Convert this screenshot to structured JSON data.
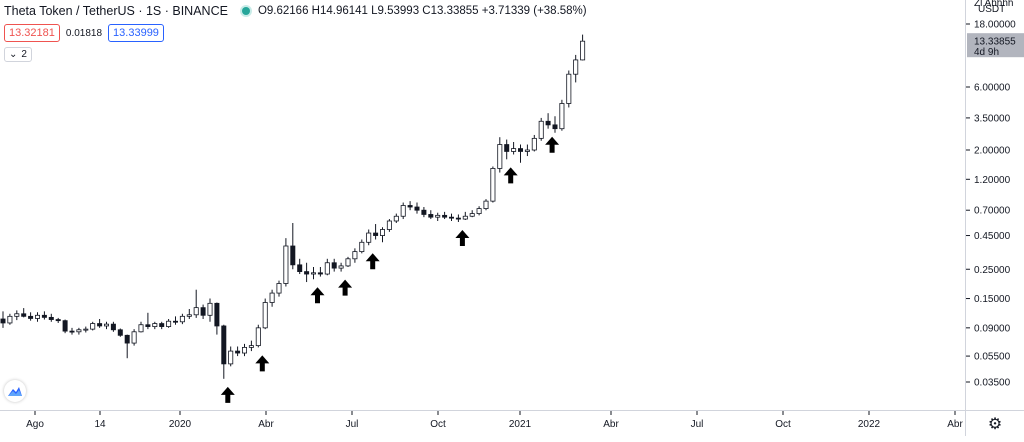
{
  "header": {
    "symbol_title": "Theta Token / TetherUS · 1S · BINANCE",
    "ohlc": "O9.62166 H14.96141 L9.53993 C13.33855 +3.71339 (+38.58%)",
    "bid": "13.32181",
    "spread": "0.01818",
    "ask": "13.33999",
    "indicators_toggle": "2"
  },
  "price_axis": {
    "currency_top": "USDT",
    "currency_partial": "Zl Ahhhh",
    "labels": [
      "18.00000",
      "6.00000",
      "3.50000",
      "2.00000",
      "1.20000",
      "0.70000",
      "0.45000",
      "0.25000",
      "0.15000",
      "0.09000",
      "0.05500",
      "0.03500"
    ],
    "last_price": "13.33855",
    "countdown": "4d 9h"
  },
  "time_axis": {
    "labels": [
      "Ago",
      "14",
      "2020",
      "Abr",
      "Jul",
      "Oct",
      "2021",
      "Abr",
      "Jul",
      "Oct",
      "2022",
      "Abr"
    ]
  },
  "colors": {
    "up": "#ffffff",
    "down": "#131722",
    "wick": "#131722",
    "bid": "#ef5350",
    "ask": "#2962ff",
    "live_dot": "#26a69a",
    "price_tag": "#b2b5be"
  },
  "chart_data": {
    "type": "candlestick",
    "scale": "log",
    "timeframe": "1W",
    "ylim": [
      0.03,
      24
    ],
    "candles": [
      {
        "o": 0.105,
        "h": 0.12,
        "l": 0.09,
        "c": 0.098
      },
      {
        "o": 0.098,
        "h": 0.115,
        "l": 0.095,
        "c": 0.11
      },
      {
        "o": 0.11,
        "h": 0.122,
        "l": 0.103,
        "c": 0.115
      },
      {
        "o": 0.115,
        "h": 0.127,
        "l": 0.108,
        "c": 0.11
      },
      {
        "o": 0.11,
        "h": 0.118,
        "l": 0.102,
        "c": 0.106
      },
      {
        "o": 0.106,
        "h": 0.118,
        "l": 0.1,
        "c": 0.112
      },
      {
        "o": 0.112,
        "h": 0.12,
        "l": 0.104,
        "c": 0.108
      },
      {
        "o": 0.108,
        "h": 0.115,
        "l": 0.1,
        "c": 0.104
      },
      {
        "o": 0.104,
        "h": 0.107,
        "l": 0.098,
        "c": 0.102
      },
      {
        "o": 0.102,
        "h": 0.104,
        "l": 0.082,
        "c": 0.085
      },
      {
        "o": 0.085,
        "h": 0.09,
        "l": 0.08,
        "c": 0.084
      },
      {
        "o": 0.084,
        "h": 0.09,
        "l": 0.08,
        "c": 0.087
      },
      {
        "o": 0.087,
        "h": 0.092,
        "l": 0.083,
        "c": 0.088
      },
      {
        "o": 0.088,
        "h": 0.1,
        "l": 0.086,
        "c": 0.097
      },
      {
        "o": 0.097,
        "h": 0.105,
        "l": 0.09,
        "c": 0.093
      },
      {
        "o": 0.093,
        "h": 0.1,
        "l": 0.088,
        "c": 0.096
      },
      {
        "o": 0.096,
        "h": 0.1,
        "l": 0.084,
        "c": 0.087
      },
      {
        "o": 0.087,
        "h": 0.089,
        "l": 0.077,
        "c": 0.079
      },
      {
        "o": 0.079,
        "h": 0.08,
        "l": 0.053,
        "c": 0.069
      },
      {
        "o": 0.069,
        "h": 0.088,
        "l": 0.066,
        "c": 0.084
      },
      {
        "o": 0.084,
        "h": 0.1,
        "l": 0.083,
        "c": 0.095
      },
      {
        "o": 0.095,
        "h": 0.117,
        "l": 0.088,
        "c": 0.092
      },
      {
        "o": 0.092,
        "h": 0.1,
        "l": 0.088,
        "c": 0.097
      },
      {
        "o": 0.097,
        "h": 0.1,
        "l": 0.088,
        "c": 0.092
      },
      {
        "o": 0.092,
        "h": 0.105,
        "l": 0.09,
        "c": 0.101
      },
      {
        "o": 0.101,
        "h": 0.11,
        "l": 0.095,
        "c": 0.1
      },
      {
        "o": 0.1,
        "h": 0.115,
        "l": 0.096,
        "c": 0.11
      },
      {
        "o": 0.11,
        "h": 0.125,
        "l": 0.105,
        "c": 0.113
      },
      {
        "o": 0.113,
        "h": 0.175,
        "l": 0.107,
        "c": 0.128
      },
      {
        "o": 0.128,
        "h": 0.135,
        "l": 0.105,
        "c": 0.112
      },
      {
        "o": 0.112,
        "h": 0.15,
        "l": 0.1,
        "c": 0.138
      },
      {
        "o": 0.138,
        "h": 0.14,
        "l": 0.08,
        "c": 0.093
      },
      {
        "o": 0.093,
        "h": 0.095,
        "l": 0.037,
        "c": 0.048
      },
      {
        "o": 0.048,
        "h": 0.065,
        "l": 0.046,
        "c": 0.06
      },
      {
        "o": 0.06,
        "h": 0.065,
        "l": 0.055,
        "c": 0.058
      },
      {
        "o": 0.058,
        "h": 0.068,
        "l": 0.055,
        "c": 0.064
      },
      {
        "o": 0.064,
        "h": 0.072,
        "l": 0.06,
        "c": 0.066
      },
      {
        "o": 0.066,
        "h": 0.095,
        "l": 0.064,
        "c": 0.09
      },
      {
        "o": 0.09,
        "h": 0.15,
        "l": 0.088,
        "c": 0.14
      },
      {
        "o": 0.14,
        "h": 0.175,
        "l": 0.13,
        "c": 0.165
      },
      {
        "o": 0.165,
        "h": 0.205,
        "l": 0.155,
        "c": 0.195
      },
      {
        "o": 0.195,
        "h": 0.43,
        "l": 0.185,
        "c": 0.375
      },
      {
        "o": 0.375,
        "h": 0.56,
        "l": 0.25,
        "c": 0.27
      },
      {
        "o": 0.27,
        "h": 0.3,
        "l": 0.23,
        "c": 0.24
      },
      {
        "o": 0.24,
        "h": 0.28,
        "l": 0.2,
        "c": 0.23
      },
      {
        "o": 0.23,
        "h": 0.26,
        "l": 0.21,
        "c": 0.235
      },
      {
        "o": 0.235,
        "h": 0.26,
        "l": 0.22,
        "c": 0.23
      },
      {
        "o": 0.23,
        "h": 0.3,
        "l": 0.225,
        "c": 0.28
      },
      {
        "o": 0.28,
        "h": 0.3,
        "l": 0.24,
        "c": 0.255
      },
      {
        "o": 0.255,
        "h": 0.28,
        "l": 0.24,
        "c": 0.265
      },
      {
        "o": 0.265,
        "h": 0.31,
        "l": 0.26,
        "c": 0.3
      },
      {
        "o": 0.3,
        "h": 0.36,
        "l": 0.28,
        "c": 0.34
      },
      {
        "o": 0.34,
        "h": 0.42,
        "l": 0.33,
        "c": 0.4
      },
      {
        "o": 0.4,
        "h": 0.5,
        "l": 0.38,
        "c": 0.47
      },
      {
        "o": 0.47,
        "h": 0.55,
        "l": 0.42,
        "c": 0.45
      },
      {
        "o": 0.45,
        "h": 0.52,
        "l": 0.4,
        "c": 0.5
      },
      {
        "o": 0.5,
        "h": 0.6,
        "l": 0.48,
        "c": 0.58
      },
      {
        "o": 0.58,
        "h": 0.66,
        "l": 0.56,
        "c": 0.63
      },
      {
        "o": 0.63,
        "h": 0.8,
        "l": 0.6,
        "c": 0.76
      },
      {
        "o": 0.76,
        "h": 0.82,
        "l": 0.7,
        "c": 0.74
      },
      {
        "o": 0.74,
        "h": 0.8,
        "l": 0.66,
        "c": 0.7
      },
      {
        "o": 0.7,
        "h": 0.74,
        "l": 0.62,
        "c": 0.65
      },
      {
        "o": 0.65,
        "h": 0.7,
        "l": 0.6,
        "c": 0.62
      },
      {
        "o": 0.62,
        "h": 0.67,
        "l": 0.58,
        "c": 0.64
      },
      {
        "o": 0.64,
        "h": 0.68,
        "l": 0.6,
        "c": 0.62
      },
      {
        "o": 0.62,
        "h": 0.66,
        "l": 0.58,
        "c": 0.61
      },
      {
        "o": 0.61,
        "h": 0.65,
        "l": 0.57,
        "c": 0.6
      },
      {
        "o": 0.6,
        "h": 0.68,
        "l": 0.59,
        "c": 0.63
      },
      {
        "o": 0.63,
        "h": 0.7,
        "l": 0.62,
        "c": 0.66
      },
      {
        "o": 0.66,
        "h": 0.75,
        "l": 0.64,
        "c": 0.72
      },
      {
        "o": 0.72,
        "h": 0.85,
        "l": 0.7,
        "c": 0.82
      },
      {
        "o": 0.82,
        "h": 1.5,
        "l": 0.8,
        "c": 1.45
      },
      {
        "o": 1.45,
        "h": 2.5,
        "l": 1.35,
        "c": 2.2
      },
      {
        "o": 2.2,
        "h": 2.4,
        "l": 1.7,
        "c": 1.95
      },
      {
        "o": 1.95,
        "h": 2.3,
        "l": 1.85,
        "c": 2.05
      },
      {
        "o": 2.05,
        "h": 2.2,
        "l": 1.6,
        "c": 1.95
      },
      {
        "o": 1.95,
        "h": 2.2,
        "l": 1.8,
        "c": 2.0
      },
      {
        "o": 2.0,
        "h": 2.6,
        "l": 1.95,
        "c": 2.45
      },
      {
        "o": 2.45,
        "h": 3.5,
        "l": 2.35,
        "c": 3.3
      },
      {
        "o": 3.3,
        "h": 3.8,
        "l": 2.9,
        "c": 3.1
      },
      {
        "o": 3.1,
        "h": 3.6,
        "l": 2.7,
        "c": 2.9
      },
      {
        "o": 2.9,
        "h": 4.8,
        "l": 2.8,
        "c": 4.5
      },
      {
        "o": 4.5,
        "h": 8.0,
        "l": 4.2,
        "c": 7.5
      },
      {
        "o": 7.5,
        "h": 10.5,
        "l": 6.5,
        "c": 9.62
      },
      {
        "o": 9.62166,
        "h": 14.96141,
        "l": 9.53993,
        "c": 13.33855
      }
    ],
    "signals_idx": [
      32,
      37,
      45,
      49,
      53,
      66,
      73,
      79
    ]
  }
}
